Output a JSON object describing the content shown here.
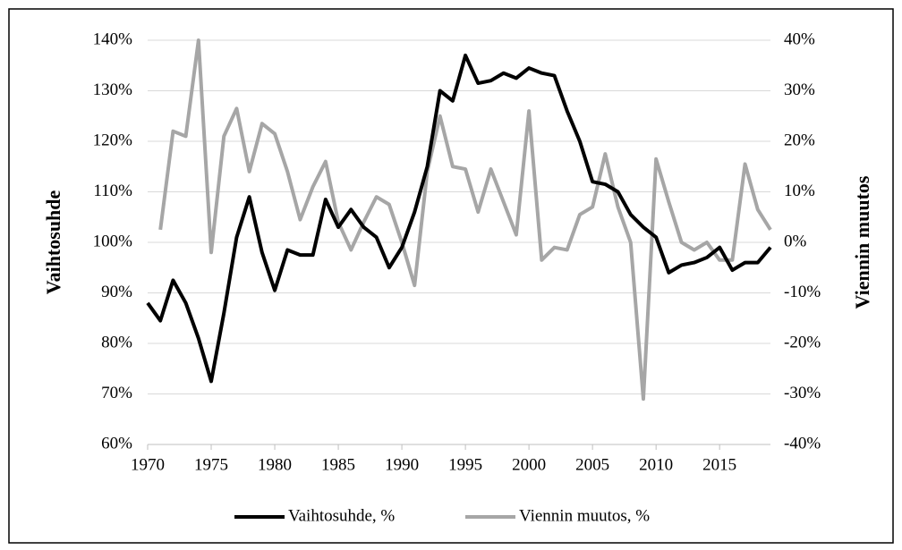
{
  "chart_data": {
    "type": "line",
    "y_label": "Vaihtosuhde",
    "y2_label": "Viennin muutos",
    "x": [
      1970,
      1971,
      1972,
      1973,
      1974,
      1975,
      1976,
      1977,
      1978,
      1979,
      1980,
      1981,
      1982,
      1983,
      1984,
      1985,
      1986,
      1987,
      1988,
      1989,
      1990,
      1991,
      1992,
      1993,
      1994,
      1995,
      1996,
      1997,
      1998,
      1999,
      2000,
      2001,
      2002,
      2003,
      2004,
      2005,
      2006,
      2007,
      2008,
      2009,
      2010,
      2011,
      2012,
      2013,
      2014,
      2015,
      2016,
      2017,
      2018,
      2019
    ],
    "xlim": [
      1970,
      2019
    ],
    "xticks": [
      1970,
      1975,
      1980,
      1985,
      1990,
      1995,
      2000,
      2005,
      2010,
      2015
    ],
    "ylim": [
      60,
      140
    ],
    "yticks": [
      {
        "value": 60,
        "label": "60%"
      },
      {
        "value": 70,
        "label": "70%"
      },
      {
        "value": 80,
        "label": "80%"
      },
      {
        "value": 90,
        "label": "90%"
      },
      {
        "value": 100,
        "label": "100%"
      },
      {
        "value": 110,
        "label": "110%"
      },
      {
        "value": 120,
        "label": "120%"
      },
      {
        "value": 130,
        "label": "130%"
      },
      {
        "value": 140,
        "label": "140%"
      }
    ],
    "y2lim": [
      -40,
      40
    ],
    "y2ticks": [
      {
        "value": -40,
        "label": "-40%"
      },
      {
        "value": -30,
        "label": "-30%"
      },
      {
        "value": -20,
        "label": "-20%"
      },
      {
        "value": -10,
        "label": "-10%"
      },
      {
        "value": 0,
        "label": "0%"
      },
      {
        "value": 10,
        "label": "10%"
      },
      {
        "value": 20,
        "label": "20%"
      },
      {
        "value": 30,
        "label": "30%"
      },
      {
        "value": 40,
        "label": "40%"
      }
    ],
    "grid": true,
    "legend": "bottom",
    "series": [
      {
        "name": "Vaihtosuhde, %",
        "color": "#000000",
        "axis": "y",
        "values": [
          88,
          84.5,
          92.5,
          88,
          81,
          72.5,
          86,
          101,
          109,
          98,
          90.5,
          98.5,
          97.5,
          97.5,
          108.5,
          103,
          106.5,
          103,
          101,
          95,
          99,
          106,
          115,
          130,
          128,
          137,
          131.5,
          132,
          133.5,
          132.5,
          134.5,
          133.5,
          133,
          126,
          120,
          112,
          111.5,
          110,
          105.5,
          103,
          101,
          94,
          95.5,
          96,
          97,
          99,
          94.5,
          96,
          96,
          99
        ]
      },
      {
        "name": "Viennin muutos, %",
        "color": "#a6a6a6",
        "axis": "y2",
        "values": [
          null,
          2.5,
          22,
          21,
          40,
          -2,
          21,
          26.5,
          14,
          23.5,
          21.5,
          14,
          4.5,
          11,
          16,
          4,
          -1.5,
          4,
          9,
          7.5,
          0,
          -8.5,
          14,
          25,
          15,
          14.5,
          6,
          14.5,
          8,
          1.5,
          26,
          -3.5,
          -1,
          -1.5,
          5.5,
          7,
          17.5,
          7,
          0,
          -31,
          16.5,
          8,
          0,
          -1.5,
          0,
          -3.5,
          -3.5,
          15.5,
          6.5,
          2.5
        ]
      }
    ]
  }
}
